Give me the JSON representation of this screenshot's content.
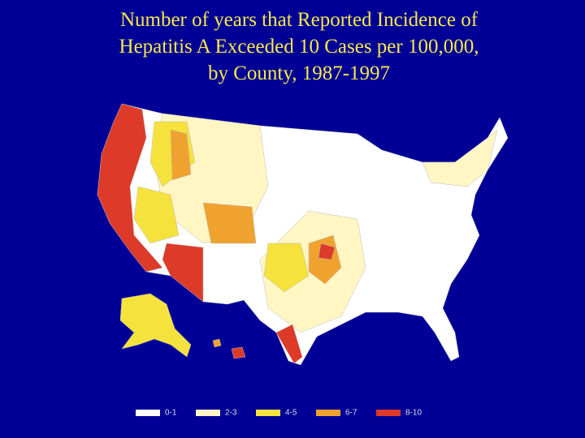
{
  "title": {
    "lines": [
      "Number of years that Reported Incidence of",
      "Hepatitis A Exceeded 10 Cases per 100,000,",
      "by County, 1987-1997"
    ]
  },
  "legend": {
    "items": [
      {
        "label": "0-1",
        "color": "#ffffff"
      },
      {
        "label": "2-3",
        "color": "#fff6c4"
      },
      {
        "label": "4-5",
        "color": "#f5e23c"
      },
      {
        "label": "6-7",
        "color": "#f0a22e"
      },
      {
        "label": "8-10",
        "color": "#dd3a2a"
      }
    ]
  }
}
